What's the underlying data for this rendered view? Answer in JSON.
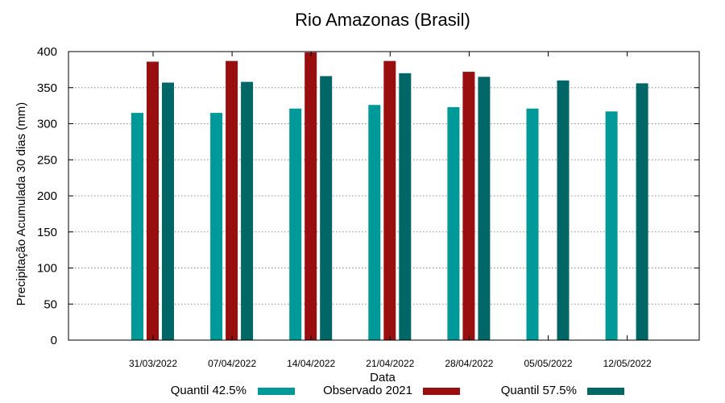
{
  "chart_data": {
    "type": "bar",
    "title": "Rio Amazonas (Brasil)",
    "xlabel": "Data",
    "ylabel": "Precipitação Acumulada 30 dias (mm)",
    "ylim": [
      0,
      400
    ],
    "yticks": [
      0,
      50,
      100,
      150,
      200,
      250,
      300,
      350,
      400
    ],
    "grid": true,
    "legend_position": "bottom",
    "categories": [
      "31/03/2022",
      "07/04/2022",
      "14/04/2022",
      "21/04/2022",
      "28/04/2022",
      "05/05/2022",
      "12/05/2022"
    ],
    "series": [
      {
        "name": "Quantil 42.5%",
        "color": "#009999",
        "values": [
          315,
          315,
          321,
          326,
          323,
          321,
          317
        ]
      },
      {
        "name": "Observado 2021",
        "color": "#990f0f",
        "values": [
          386,
          387,
          399,
          387,
          372,
          null,
          null
        ]
      },
      {
        "name": "Quantil 57.5%",
        "color": "#006666",
        "values": [
          357,
          358,
          366,
          370,
          365,
          360,
          356
        ]
      }
    ]
  }
}
